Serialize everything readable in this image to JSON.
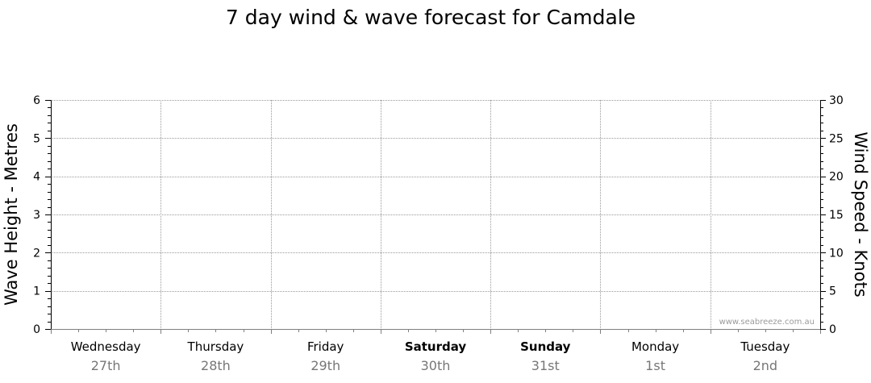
{
  "chart_data": {
    "type": "line",
    "title": "7 day wind & wave forecast for Camdale",
    "left_axis": {
      "label": "Wave Height - Metres",
      "ylim": [
        0,
        6
      ],
      "ticks": [
        "0",
        "1",
        "2",
        "3",
        "4",
        "5",
        "6"
      ]
    },
    "right_axis": {
      "label": "Wind Speed - Knots",
      "ylim": [
        0,
        30
      ],
      "ticks": [
        "0",
        "5",
        "10",
        "15",
        "20",
        "25",
        "30"
      ]
    },
    "days": [
      {
        "name": "Wednesday",
        "date": "27th",
        "bold": false
      },
      {
        "name": "Thursday",
        "date": "28th",
        "bold": false
      },
      {
        "name": "Friday",
        "date": "29th",
        "bold": false
      },
      {
        "name": "Saturday",
        "date": "30th",
        "bold": true
      },
      {
        "name": "Sunday",
        "date": "31st",
        "bold": true
      },
      {
        "name": "Monday",
        "date": "1st",
        "bold": false
      },
      {
        "name": "Tuesday",
        "date": "2nd",
        "bold": false
      }
    ],
    "series": [],
    "grid": true,
    "watermark": "www.seabreeze.com.au"
  },
  "colors": {
    "grid": "#9a9a9a",
    "axis": "#000000",
    "date_text": "#777777",
    "watermark": "#9a9a9a"
  }
}
